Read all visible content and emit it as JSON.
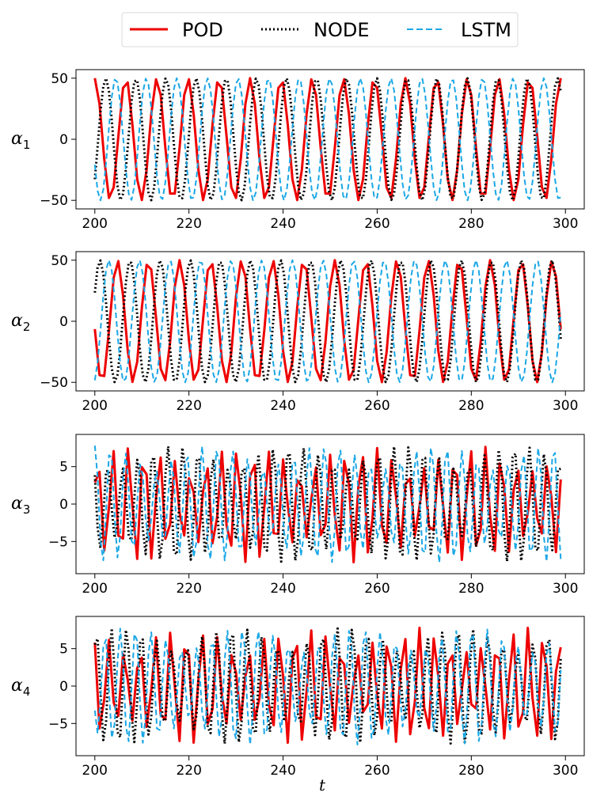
{
  "legend": [
    {
      "name": "POD",
      "color": "#ee0000",
      "dash": "solid"
    },
    {
      "name": "NODE",
      "color": "#000000",
      "dash": "dotted"
    },
    {
      "name": "LSTM",
      "color": "#1aa7e6",
      "dash": "dashed"
    }
  ],
  "chart_data": [
    {
      "type": "line",
      "ylabel": "α",
      "ylabel_sub": "1",
      "xlabel": "",
      "xlim": [
        196,
        304
      ],
      "ylim": [
        -57,
        57
      ],
      "xticks": [
        200,
        220,
        240,
        260,
        280,
        300
      ],
      "yticks": [
        50,
        0,
        -50
      ],
      "series": [
        {
          "name": "POD",
          "amplitude": 50,
          "period": 6.6,
          "phase": 0.0,
          "x_start": 200,
          "x_end": 299,
          "step": 1
        },
        {
          "name": "NODE",
          "amplitude": 50,
          "period": 6.4,
          "phase": 4.0,
          "x_start": 200,
          "x_end": 299,
          "step": 0.6
        },
        {
          "name": "LSTM",
          "amplitude": 50,
          "period": 6.5,
          "phase": 2.0,
          "x_start": 200,
          "x_end": 299,
          "step": 0.6
        }
      ]
    },
    {
      "type": "line",
      "ylabel": "α",
      "ylabel_sub": "2",
      "xlabel": "",
      "xlim": [
        196,
        304
      ],
      "ylim": [
        -57,
        57
      ],
      "xticks": [
        200,
        220,
        240,
        260,
        280,
        300
      ],
      "yticks": [
        50,
        0,
        -50
      ],
      "series": [
        {
          "name": "POD",
          "amplitude": 50,
          "period": 6.6,
          "phase": 1.7,
          "x_start": 200,
          "x_end": 299,
          "step": 1
        },
        {
          "name": "NODE",
          "amplitude": 50,
          "period": 6.4,
          "phase": 5.2,
          "x_start": 200,
          "x_end": 299,
          "step": 0.6
        },
        {
          "name": "LSTM",
          "amplitude": 50,
          "period": 6.5,
          "phase": 3.4,
          "x_start": 200,
          "x_end": 299,
          "step": 0.6
        }
      ]
    },
    {
      "type": "line",
      "ylabel": "α",
      "ylabel_sub": "3",
      "xlabel": "",
      "xlim": [
        196,
        304
      ],
      "ylim": [
        -9.3,
        9.3
      ],
      "xticks": [
        200,
        220,
        240,
        260,
        280,
        300
      ],
      "yticks": [
        5,
        0,
        -5
      ],
      "series": [
        {
          "name": "POD",
          "amplitude": 8,
          "period": 6.6,
          "phase": 0.5,
          "x_start": 200,
          "x_end": 299,
          "step": 1,
          "kind": "beat"
        },
        {
          "name": "NODE",
          "amplitude": 8,
          "period": 6.4,
          "phase": 2.5,
          "x_start": 200,
          "x_end": 299,
          "step": 0.6,
          "kind": "beat"
        },
        {
          "name": "LSTM",
          "amplitude": 8,
          "period": 6.5,
          "phase": 1.5,
          "x_start": 200,
          "x_end": 299,
          "step": 0.6,
          "kind": "beat"
        }
      ]
    },
    {
      "type": "line",
      "ylabel": "α",
      "ylabel_sub": "4",
      "xlabel": "t",
      "xlim": [
        196,
        304
      ],
      "ylim": [
        -9.3,
        9.3
      ],
      "xticks": [
        200,
        220,
        240,
        260,
        280,
        300
      ],
      "yticks": [
        5,
        0,
        -5
      ],
      "series": [
        {
          "name": "POD",
          "amplitude": 8,
          "period": 6.6,
          "phase": 2.2,
          "x_start": 200,
          "x_end": 299,
          "step": 1,
          "kind": "beat"
        },
        {
          "name": "NODE",
          "amplitude": 8,
          "period": 6.4,
          "phase": 0.9,
          "x_start": 200,
          "x_end": 299,
          "step": 0.6,
          "kind": "beat"
        },
        {
          "name": "LSTM",
          "amplitude": 8,
          "period": 6.5,
          "phase": 3.7,
          "x_start": 200,
          "x_end": 299,
          "step": 0.6,
          "kind": "beat"
        }
      ]
    }
  ]
}
